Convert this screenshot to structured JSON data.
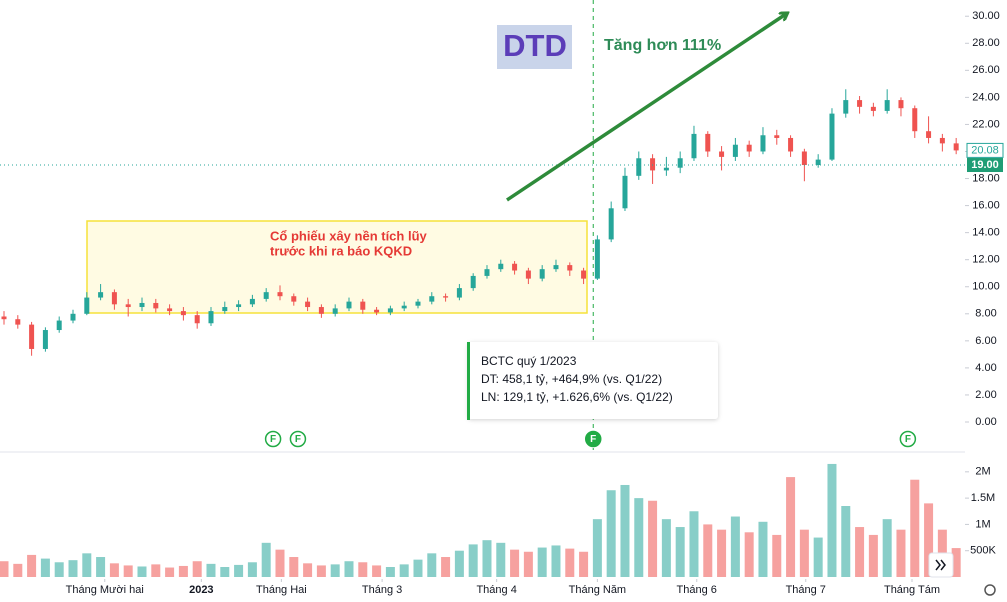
{
  "chart_data": {
    "type": "candlestick",
    "ticker": "DTD",
    "headline": "Tăng hơn 111%",
    "annotation_lines": [
      "Cổ phiếu xây nền tích lũy",
      "trước khi ra báo KQKD"
    ],
    "tooltip": [
      "BCTC quý 1/2023",
      "DT: 458,1 tỷ, +464,9% (vs. Q1/22)",
      "LN: 129,1 tỷ, +1.626,6% (vs. Q1/22)"
    ],
    "up_color": "#26a69a",
    "down_color": "#ef5350",
    "open": [
      7.8,
      7.6,
      7.2,
      5.4,
      6.8,
      7.5,
      8.0,
      9.2,
      9.6,
      8.7,
      8.5,
      8.8,
      8.4,
      8.2,
      7.9,
      7.3,
      8.2,
      8.5,
      8.7,
      9.1,
      9.6,
      9.3,
      8.9,
      8.5,
      8.0,
      8.4,
      8.9,
      8.3,
      8.1,
      8.4,
      8.6,
      8.9,
      9.3,
      9.2,
      9.9,
      10.8,
      11.3,
      11.7,
      11.2,
      10.6,
      11.3,
      11.6,
      11.2,
      10.6,
      13.5,
      15.8,
      18.2,
      19.5,
      18.6,
      18.8,
      19.5,
      21.3,
      20.0,
      19.6,
      20.5,
      20.0,
      21.2,
      21.0,
      20.0,
      19.0,
      19.4,
      22.8,
      23.8,
      23.3,
      23.0,
      23.8,
      23.2,
      21.5,
      21.0,
      20.6
    ],
    "high": [
      8.2,
      7.9,
      7.4,
      7.0,
      7.8,
      8.3,
      9.6,
      10.2,
      9.8,
      9.1,
      9.2,
      9.1,
      8.7,
      8.5,
      8.2,
      8.5,
      8.9,
      9.0,
      9.4,
      9.9,
      10.1,
      9.5,
      9.2,
      8.7,
      8.7,
      9.2,
      9.1,
      8.5,
      8.6,
      8.9,
      9.1,
      9.6,
      9.5,
      10.2,
      11.0,
      11.6,
      12.0,
      11.9,
      11.4,
      11.6,
      12.0,
      11.8,
      11.4,
      13.8,
      16.3,
      18.8,
      20.0,
      19.8,
      19.6,
      20.0,
      21.9,
      21.5,
      20.4,
      21.0,
      20.8,
      21.8,
      21.6,
      21.2,
      20.2,
      19.8,
      23.2,
      24.6,
      24.1,
      23.6,
      24.6,
      24.0,
      23.4,
      22.6,
      21.3,
      21.0
    ],
    "low": [
      7.2,
      6.9,
      4.9,
      5.2,
      6.6,
      7.3,
      7.9,
      9.0,
      8.3,
      7.8,
      8.2,
      8.1,
      7.9,
      7.5,
      6.9,
      7.1,
      8.0,
      8.2,
      8.5,
      8.9,
      9.0,
      8.6,
      8.2,
      7.7,
      7.8,
      8.2,
      8.0,
      7.9,
      7.9,
      8.2,
      8.4,
      8.7,
      8.9,
      9.0,
      9.7,
      10.6,
      11.1,
      10.9,
      10.2,
      10.4,
      11.1,
      10.8,
      10.2,
      10.5,
      13.3,
      15.6,
      17.9,
      17.6,
      18.2,
      18.4,
      19.3,
      19.6,
      18.6,
      19.3,
      19.6,
      19.8,
      20.5,
      19.6,
      17.8,
      18.8,
      19.3,
      22.5,
      22.8,
      22.6,
      22.8,
      22.6,
      21.0,
      20.6,
      20.0,
      19.8
    ],
    "close": [
      7.6,
      7.2,
      5.4,
      6.8,
      7.5,
      8.0,
      9.2,
      9.6,
      8.7,
      8.5,
      8.8,
      8.4,
      8.2,
      7.9,
      7.3,
      8.2,
      8.5,
      8.7,
      9.1,
      9.6,
      9.3,
      8.9,
      8.5,
      8.0,
      8.4,
      8.9,
      8.3,
      8.1,
      8.4,
      8.6,
      8.9,
      9.3,
      9.2,
      9.9,
      10.8,
      11.3,
      11.7,
      11.2,
      10.6,
      11.3,
      11.6,
      11.2,
      10.6,
      13.5,
      15.8,
      18.2,
      19.5,
      18.6,
      18.8,
      19.5,
      21.3,
      20.0,
      19.6,
      20.5,
      20.0,
      21.2,
      21.0,
      20.0,
      19.0,
      19.4,
      22.8,
      23.8,
      23.3,
      23.0,
      23.8,
      23.2,
      21.5,
      21.0,
      20.6,
      20.08
    ],
    "volume": [
      300000,
      250000,
      420000,
      350000,
      280000,
      320000,
      450000,
      380000,
      260000,
      220000,
      200000,
      240000,
      180000,
      210000,
      300000,
      250000,
      190000,
      230000,
      280000,
      650000,
      520000,
      380000,
      260000,
      220000,
      240000,
      300000,
      280000,
      220000,
      190000,
      240000,
      330000,
      450000,
      380000,
      500000,
      620000,
      700000,
      650000,
      520000,
      480000,
      560000,
      600000,
      540000,
      480000,
      1100000,
      1650000,
      1750000,
      1500000,
      1450000,
      1100000,
      950000,
      1250000,
      1000000,
      900000,
      1150000,
      850000,
      1050000,
      800000,
      1900000,
      900000,
      750000,
      2150000,
      1350000,
      950000,
      800000,
      1100000,
      900000,
      1850000,
      1400000,
      900000,
      550000
    ],
    "xlim": [
      -0.29,
      69.64
    ],
    "xticks": [
      {
        "value": 7.3,
        "label": "Tháng Mười hai"
      },
      {
        "value": 14.3,
        "label": "2023"
      },
      {
        "value": 20.1,
        "label": "Tháng Hai"
      },
      {
        "value": 27.4,
        "label": "Tháng 3"
      },
      {
        "value": 35.7,
        "label": "Tháng 4"
      },
      {
        "value": 43,
        "label": "Tháng Năm"
      },
      {
        "value": 50.2,
        "label": "Tháng 6"
      },
      {
        "value": 58.1,
        "label": "Tháng 7"
      },
      {
        "value": 65.8,
        "label": "Tháng Tám"
      }
    ],
    "ylim": [
      -2.07,
      31.2
    ],
    "yticks": [
      {
        "value": 0,
        "label": "0.00"
      },
      {
        "value": 2,
        "label": "2.00"
      },
      {
        "value": 4,
        "label": "4.00"
      },
      {
        "value": 6,
        "label": "6.00"
      },
      {
        "value": 8,
        "label": "8.00"
      },
      {
        "value": 10,
        "label": "10.00"
      },
      {
        "value": 12,
        "label": "12.00"
      },
      {
        "value": 14,
        "label": "14.00"
      },
      {
        "value": 16,
        "label": "16.00"
      },
      {
        "value": 18,
        "label": "18.00"
      },
      {
        "value": 20,
        "label": "20.00"
      },
      {
        "value": 22,
        "label": "22.00"
      },
      {
        "value": 24,
        "label": "24.00"
      },
      {
        "value": 26,
        "label": "26.00"
      },
      {
        "value": 28,
        "label": "28.00"
      },
      {
        "value": 30,
        "label": "30.00"
      }
    ],
    "volume_ylim": [
      0,
      2320000
    ],
    "volume_yticks": [
      {
        "value": 2000000,
        "label": "2M"
      },
      {
        "value": 1500000,
        "label": "1.5M"
      },
      {
        "value": 1000000,
        "label": "1M"
      },
      {
        "value": 500000,
        "label": "500K"
      }
    ],
    "last_price": 20.08,
    "reference_line": {
      "value": 19,
      "label": "19.00"
    },
    "events": [
      {
        "value": 19.5,
        "label": "F"
      },
      {
        "value": 21.3,
        "label": "F"
      },
      {
        "value": 42.7,
        "label": "F"
      },
      {
        "value": 65.5,
        "label": "F"
      }
    ]
  }
}
